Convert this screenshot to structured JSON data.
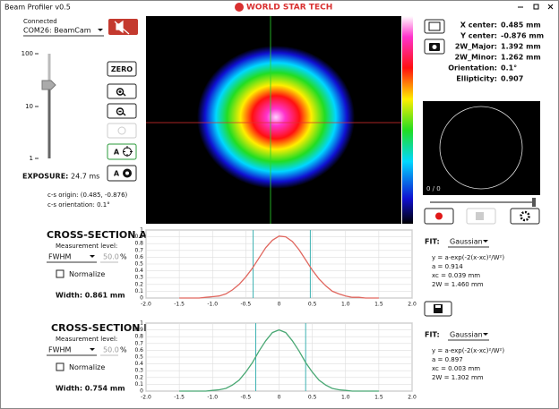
{
  "window": {
    "title": "Beam Profiler v0.5",
    "logo": "WORLD STAR TECH"
  },
  "connection": {
    "status": "Connected",
    "port": "COM26: BeamCam"
  },
  "exposure_scale": [
    "100",
    "10",
    "1"
  ],
  "buttons": {
    "zero": "ZERO",
    "auto_center": "A",
    "auto_exposure": "A"
  },
  "exposure": {
    "label": "EXPOSURE:",
    "value": "24.7 ms"
  },
  "cs_info": [
    "c-s origin: (0.485, -0.876)",
    "c-s orientation: 0.1°"
  ],
  "stats": [
    {
      "label": "X center:",
      "value": "0.485 mm"
    },
    {
      "label": "Y center:",
      "value": "-0.876 mm"
    },
    {
      "label": "2W_Major:",
      "value": "1.392 mm"
    },
    {
      "label": "2W_Minor:",
      "value": "1.262 mm"
    },
    {
      "label": "Orientation:",
      "value": "0.1°"
    },
    {
      "label": "Ellipticity:",
      "value": "0.907"
    }
  ],
  "preview": {
    "counter": "0 / 0"
  },
  "cross_sections": [
    {
      "title": "CROSS-SECTION A",
      "measurement_label": "Measurement level:",
      "level_mode": "FWHM",
      "level_value": "50.0",
      "level_unit": "%",
      "normalize": "Normalize",
      "width": "Width: 0.861 mm",
      "fit_label": "FIT:",
      "fit_model": "Gaussian",
      "fit_lines": [
        "y = a·exp(-2(x-xc)²/W²)",
        "a = 0.914",
        "xc = 0.039 mm",
        "2W = 1.460 mm"
      ],
      "chart": {
        "type": "line",
        "color": "#e0675f",
        "cursor_color": "#3fb3b3",
        "cursors": [
          -0.39,
          0.47
        ],
        "x": [
          -1.5,
          -1.4,
          -1.3,
          -1.2,
          -1.1,
          -1.0,
          -0.9,
          -0.8,
          -0.7,
          -0.6,
          -0.5,
          -0.4,
          -0.3,
          -0.2,
          -0.1,
          0,
          0.1,
          0.2,
          0.3,
          0.4,
          0.5,
          0.6,
          0.7,
          0.8,
          0.9,
          1.0,
          1.1,
          1.2,
          1.3,
          1.4,
          1.5
        ],
        "values": [
          0,
          0,
          0,
          0,
          0.01,
          0.02,
          0.03,
          0.06,
          0.12,
          0.2,
          0.31,
          0.44,
          0.59,
          0.74,
          0.85,
          0.91,
          0.9,
          0.83,
          0.71,
          0.56,
          0.41,
          0.28,
          0.18,
          0.1,
          0.06,
          0.03,
          0.01,
          0.01,
          0,
          0,
          0
        ],
        "xlim": [
          -2,
          2
        ],
        "ylim": [
          0,
          1
        ],
        "xticks": [
          {
            "value": -2,
            "label": "-2.0"
          },
          -1.5,
          {
            "value": -1,
            "label": "-1.0"
          },
          -0.5,
          0,
          0.5,
          {
            "value": 1,
            "label": "1.0"
          },
          1.5,
          {
            "value": 2,
            "label": "2.0"
          }
        ],
        "yticks": [
          0,
          0.1,
          0.2,
          0.3,
          0.4,
          0.5,
          0.6,
          0.7,
          0.8,
          0.9,
          1
        ],
        "grid": true
      }
    },
    {
      "title": "CROSS-SECTION B",
      "measurement_label": "Measurement level:",
      "level_mode": "FWHM",
      "level_value": "50.0",
      "level_unit": "%",
      "normalize": "Normalize",
      "width": "Width: 0.754 mm",
      "fit_label": "FIT:",
      "fit_model": "Gaussian",
      "fit_lines": [
        "y = a·exp(-2(x-xc)²/W²)",
        "a = 0.897",
        "xc = 0.003 mm",
        "2W = 1.302 mm"
      ],
      "chart": {
        "type": "line",
        "color": "#4aa874",
        "cursor_color": "#3fb3b3",
        "cursors": [
          -0.35,
          0.4
        ],
        "x": [
          -1.5,
          -1.4,
          -1.3,
          -1.2,
          -1.1,
          -1.0,
          -0.9,
          -0.8,
          -0.7,
          -0.6,
          -0.5,
          -0.4,
          -0.3,
          -0.2,
          -0.1,
          0,
          0.1,
          0.2,
          0.3,
          0.4,
          0.5,
          0.6,
          0.7,
          0.8,
          0.9,
          1.0,
          1.1,
          1.2,
          1.3,
          1.4,
          1.5
        ],
        "values": [
          0,
          0,
          0,
          0,
          0,
          0.01,
          0.02,
          0.04,
          0.09,
          0.16,
          0.28,
          0.42,
          0.59,
          0.74,
          0.86,
          0.9,
          0.86,
          0.74,
          0.59,
          0.42,
          0.28,
          0.16,
          0.09,
          0.04,
          0.02,
          0.01,
          0,
          0,
          0,
          0,
          0
        ],
        "xlim": [
          -2,
          2
        ],
        "ylim": [
          0,
          1
        ],
        "xticks": [
          {
            "value": -2,
            "label": "-2.0"
          },
          -1.5,
          {
            "value": -1,
            "label": "-1.0"
          },
          -0.5,
          0,
          0.5,
          {
            "value": 1,
            "label": "1.0"
          },
          1.5,
          {
            "value": 2,
            "label": "2.0"
          }
        ],
        "yticks": [
          0,
          0.1,
          0.2,
          0.3,
          0.4,
          0.5,
          0.6,
          0.7,
          0.8,
          0.9,
          1
        ],
        "grid": true
      }
    }
  ]
}
